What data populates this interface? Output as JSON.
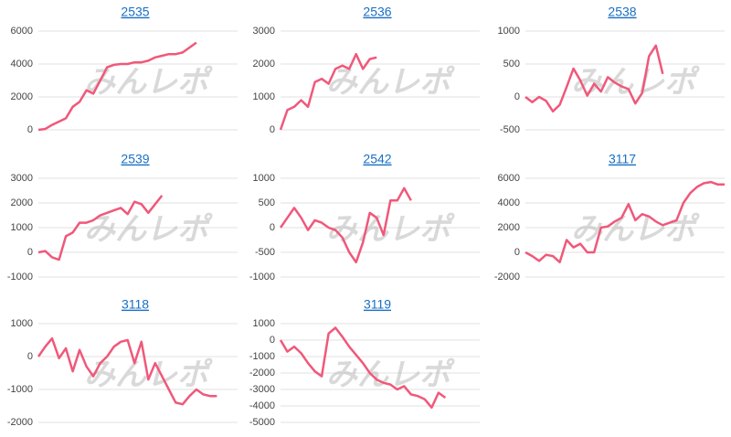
{
  "watermark": "みんレポ",
  "chart_data": [
    {
      "type": "line",
      "title": "2535",
      "color": "#f0587a",
      "grid": true,
      "slots": 30,
      "values": [
        0,
        50,
        300,
        500,
        700,
        1400,
        1700,
        2400,
        2200,
        3000,
        3800,
        3950,
        4000,
        4000,
        4100,
        4100,
        4200,
        4400,
        4500,
        4600,
        4600,
        4700,
        5000,
        5300
      ],
      "ylim": [
        0,
        6000
      ],
      "yticks": [
        0,
        2000,
        4000,
        6000
      ]
    },
    {
      "type": "line",
      "title": "2536",
      "color": "#f0587a",
      "grid": true,
      "slots": 30,
      "values": [
        0,
        600,
        700,
        900,
        700,
        1450,
        1550,
        1400,
        1850,
        1950,
        1850,
        2300,
        1850,
        2150,
        2200
      ],
      "ylim": [
        0,
        3000
      ],
      "yticks": [
        0,
        1000,
        2000,
        3000
      ]
    },
    {
      "type": "line",
      "title": "2538",
      "color": "#f0587a",
      "grid": true,
      "slots": 30,
      "values": [
        0,
        -80,
        0,
        -60,
        -220,
        -120,
        150,
        430,
        250,
        20,
        200,
        80,
        300,
        220,
        160,
        120,
        -100,
        60,
        620,
        780,
        350
      ],
      "ylim": [
        -500,
        1000
      ],
      "yticks": [
        -500,
        0,
        500,
        1000
      ]
    },
    {
      "type": "line",
      "title": "2539",
      "color": "#f0587a",
      "grid": true,
      "slots": 30,
      "values": [
        0,
        50,
        -200,
        -300,
        650,
        800,
        1200,
        1200,
        1300,
        1500,
        1600,
        1700,
        1800,
        1550,
        2050,
        1950,
        1600,
        1950,
        2300
      ],
      "ylim": [
        -1000,
        3000
      ],
      "yticks": [
        -1000,
        0,
        1000,
        2000,
        3000
      ]
    },
    {
      "type": "line",
      "title": "2542",
      "color": "#f0587a",
      "grid": true,
      "slots": 30,
      "values": [
        0,
        200,
        400,
        200,
        -50,
        150,
        100,
        0,
        -50,
        -200,
        -500,
        -700,
        -300,
        300,
        200,
        -150,
        550,
        550,
        800,
        550
      ],
      "ylim": [
        -1000,
        1000
      ],
      "yticks": [
        -1000,
        -500,
        0,
        500,
        1000
      ]
    },
    {
      "type": "line",
      "title": "3117",
      "color": "#f0587a",
      "grid": true,
      "slots": 30,
      "values": [
        0,
        -300,
        -700,
        -200,
        -300,
        -800,
        1000,
        400,
        700,
        0,
        0,
        2000,
        2100,
        2500,
        2800,
        3900,
        2600,
        3100,
        2900,
        2500,
        2200,
        2400,
        2600,
        4000,
        4800,
        5300,
        5600,
        5700,
        5500,
        5500
      ],
      "ylim": [
        -2000,
        6000
      ],
      "yticks": [
        -2000,
        0,
        2000,
        4000,
        6000
      ]
    },
    {
      "type": "line",
      "title": "3118",
      "color": "#f0587a",
      "grid": true,
      "slots": 30,
      "values": [
        0,
        300,
        550,
        -50,
        250,
        -450,
        200,
        -300,
        -600,
        -200,
        0,
        300,
        450,
        500,
        -200,
        450,
        -700,
        -200,
        -600,
        -1000,
        -1400,
        -1450,
        -1200,
        -1000,
        -1150,
        -1200,
        -1200
      ],
      "ylim": [
        -2000,
        1000
      ],
      "yticks": [
        -2000,
        -1000,
        0,
        1000
      ]
    },
    {
      "type": "line",
      "title": "3119",
      "color": "#f0587a",
      "grid": true,
      "slots": 30,
      "values": [
        0,
        -700,
        -400,
        -800,
        -1400,
        -1900,
        -2200,
        400,
        750,
        200,
        -400,
        -900,
        -1400,
        -2000,
        -2400,
        -2600,
        -2700,
        -3000,
        -2800,
        -3300,
        -3400,
        -3600,
        -4100,
        -3200,
        -3500
      ],
      "ylim": [
        -5000,
        1000
      ],
      "yticks": [
        -5000,
        -4000,
        -3000,
        -2000,
        -1000,
        0,
        1000
      ]
    }
  ]
}
